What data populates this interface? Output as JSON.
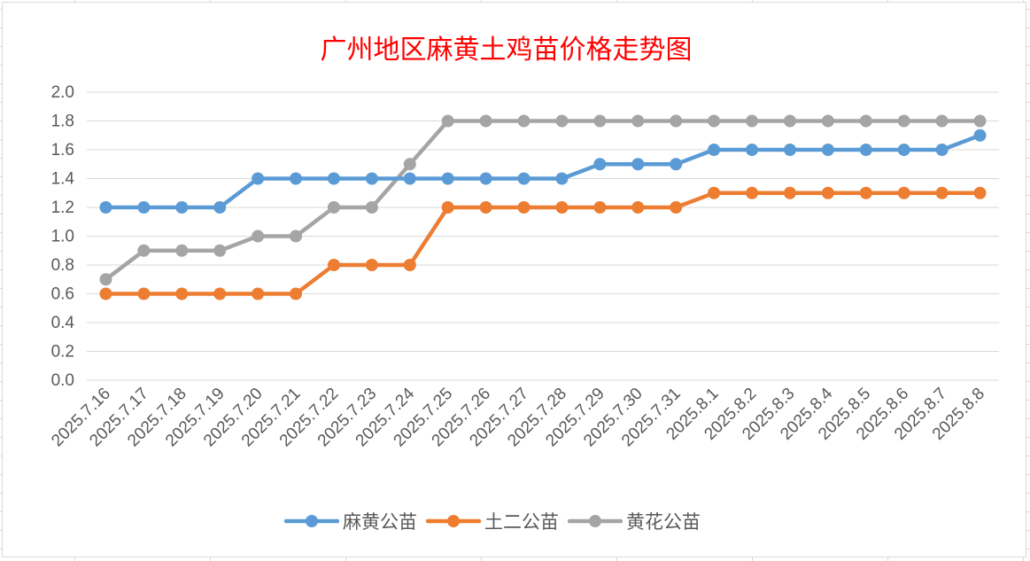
{
  "chart_data": {
    "type": "line",
    "title": "广州地区麻黄土鸡苗价格走势图",
    "categories": [
      "2025.7.16",
      "2025.7.17",
      "2025.7.18",
      "2025.7.19",
      "2025.7.20",
      "2025.7.21",
      "2025.7.22",
      "2025.7.23",
      "2025.7.24",
      "2025.7.25",
      "2025.7.26",
      "2025.7.27",
      "2025.7.28",
      "2025.7.29",
      "2025.7.30",
      "2025.7.31",
      "2025.8.1",
      "2025.8.2",
      "2025.8.3",
      "2025.8.4",
      "2025.8.5",
      "2025.8.6",
      "2025.8.7",
      "2025.8.8"
    ],
    "series": [
      {
        "name": "麻黄公苗",
        "color": "#5b9bd5",
        "values": [
          1.2,
          1.2,
          1.2,
          1.2,
          1.4,
          1.4,
          1.4,
          1.4,
          1.4,
          1.4,
          1.4,
          1.4,
          1.4,
          1.5,
          1.5,
          1.5,
          1.6,
          1.6,
          1.6,
          1.6,
          1.6,
          1.6,
          1.6,
          1.7
        ]
      },
      {
        "name": "土二公苗",
        "color": "#ed7d31",
        "values": [
          0.6,
          0.6,
          0.6,
          0.6,
          0.6,
          0.6,
          0.8,
          0.8,
          0.8,
          1.2,
          1.2,
          1.2,
          1.2,
          1.2,
          1.2,
          1.2,
          1.3,
          1.3,
          1.3,
          1.3,
          1.3,
          1.3,
          1.3,
          1.3
        ]
      },
      {
        "name": "黄花公苗",
        "color": "#a5a5a5",
        "values": [
          0.7,
          0.9,
          0.9,
          0.9,
          1.0,
          1.0,
          1.2,
          1.2,
          1.5,
          1.8,
          1.8,
          1.8,
          1.8,
          1.8,
          1.8,
          1.8,
          1.8,
          1.8,
          1.8,
          1.8,
          1.8,
          1.8,
          1.8,
          1.8
        ]
      }
    ],
    "yticks": [
      "0.0",
      "0.2",
      "0.4",
      "0.6",
      "0.8",
      "1.0",
      "1.2",
      "1.4",
      "1.6",
      "1.8",
      "2.0"
    ],
    "ylim": [
      0,
      2.0
    ],
    "grid": true,
    "gridline_color": "#d9d9d9",
    "legend_position": "bottom"
  }
}
